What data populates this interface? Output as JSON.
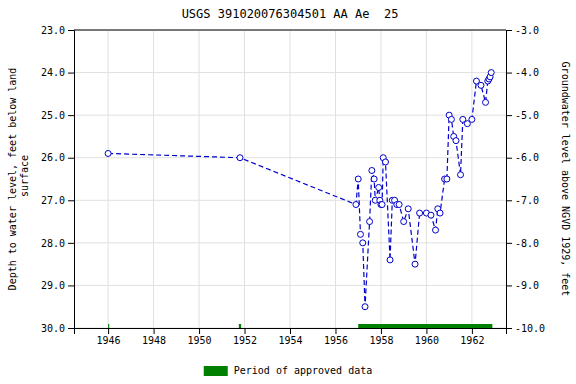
{
  "chart_data": {
    "type": "line",
    "title": "USGS 391020076304501 AA Ae  25",
    "ylabel": "Depth to water level, feet below land\n surface",
    "y2label": "Groundwater level above NGVD 1929, feet",
    "xlim": [
      1944.5,
      1963.5
    ],
    "ylim": [
      30.0,
      23.0
    ],
    "y2lim": [
      -10.0,
      -3.0
    ],
    "xticks": [
      1946,
      1948,
      1950,
      1952,
      1954,
      1956,
      1958,
      1960,
      1962
    ],
    "yticks": [
      {
        "value": 23.0,
        "label": "23.0"
      },
      {
        "value": 24.0,
        "label": "24.0"
      },
      {
        "value": 25.0,
        "label": "25.0"
      },
      {
        "value": 26.0,
        "label": "26.0"
      },
      {
        "value": 27.0,
        "label": "27.0"
      },
      {
        "value": 28.0,
        "label": "28.0"
      },
      {
        "value": 29.0,
        "label": "29.0"
      },
      {
        "value": 30.0,
        "label": "30.0"
      }
    ],
    "y2ticks": [
      {
        "value": -3.0,
        "label": "-3.0"
      },
      {
        "value": -4.0,
        "label": "-4.0"
      },
      {
        "value": -5.0,
        "label": "-5.0"
      },
      {
        "value": -6.0,
        "label": "-6.0"
      },
      {
        "value": -7.0,
        "label": "-7.0"
      },
      {
        "value": -8.0,
        "label": "-8.0"
      },
      {
        "value": -9.0,
        "label": "-9.0"
      },
      {
        "value": -10.0,
        "label": "-10.0"
      }
    ],
    "grid": true,
    "legend": "bottom",
    "x": [
      1946.0,
      1951.8,
      1956.9,
      1957.0,
      1957.1,
      1957.2,
      1957.3,
      1957.5,
      1957.6,
      1957.7,
      1957.75,
      1957.9,
      1957.95,
      1958.0,
      1958.05,
      1958.1,
      1958.2,
      1958.4,
      1958.5,
      1958.6,
      1958.7,
      1958.8,
      1959.0,
      1959.2,
      1959.5,
      1959.7,
      1960.0,
      1960.2,
      1960.4,
      1960.5,
      1960.6,
      1960.8,
      1960.9,
      1961.0,
      1961.1,
      1961.2,
      1961.3,
      1961.5,
      1961.6,
      1961.8,
      1962.0,
      1962.2,
      1962.4,
      1962.6,
      1962.7,
      1962.75,
      1962.8,
      1962.85
    ],
    "series": [
      {
        "color": "#0000cc",
        "marker": "circle",
        "line_style": "dashed",
        "values": [
          25.9,
          26.0,
          27.1,
          26.5,
          27.8,
          28.0,
          29.5,
          27.5,
          26.3,
          26.5,
          27.0,
          26.7,
          27.0,
          27.1,
          27.1,
          26.0,
          26.1,
          28.4,
          27.0,
          27.0,
          27.1,
          27.1,
          27.5,
          27.2,
          28.5,
          27.3,
          27.3,
          27.35,
          27.7,
          27.2,
          27.3,
          26.5,
          26.5,
          25.0,
          25.1,
          25.5,
          25.6,
          26.4,
          25.1,
          25.2,
          25.1,
          24.2,
          24.3,
          24.7,
          24.2,
          24.15,
          24.1,
          24.0
        ]
      }
    ],
    "approved_periods": {
      "name": "Period of approved data",
      "color": "#008000",
      "y": 30.0,
      "ranges": [
        [
          1946.0,
          1946.05
        ],
        [
          1951.75,
          1951.85
        ],
        [
          1957.0,
          1962.9
        ]
      ]
    }
  }
}
